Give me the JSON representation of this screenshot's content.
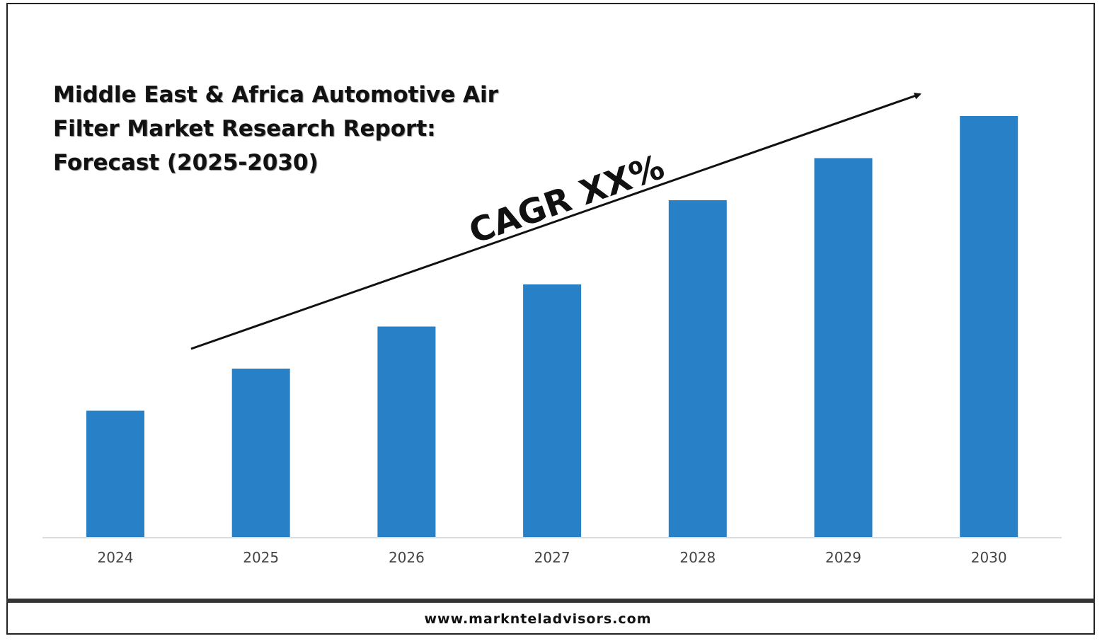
{
  "chart_data": {
    "type": "bar",
    "title": "Middle East & Africa Automotive Air Filter Market Research Report: Forecast (2025-2030)",
    "categories": [
      "2024",
      "2025",
      "2026",
      "2027",
      "2028",
      "2029",
      "2030"
    ],
    "values": [
      30,
      40,
      50,
      60,
      80,
      90,
      100
    ],
    "ylim": [
      0,
      100
    ],
    "xlabel": "",
    "ylabel": "",
    "grid": false,
    "bar_color": "#2880c6",
    "annotation": "CAGR XX%"
  },
  "footer": {
    "website": "www.marknteladvisors.com"
  }
}
